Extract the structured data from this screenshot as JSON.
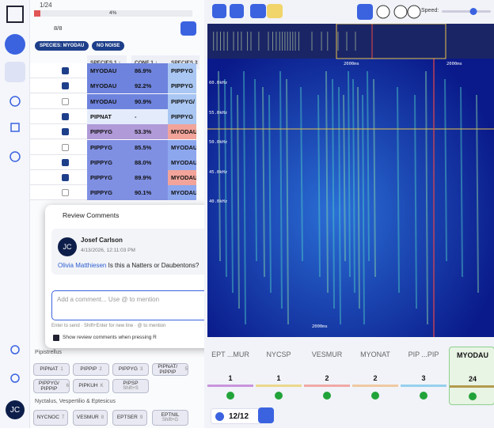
{
  "header": {
    "counter": "1/24",
    "progress": "4%",
    "filter_count": "8/8"
  },
  "filters": [
    "SPECIES: MYODAU",
    "NO NOISE"
  ],
  "table": {
    "columns": [
      "SPECIES 1 ↕",
      "CONF 1 ↕",
      "SPECIES 2"
    ],
    "rows": [
      {
        "species1": "MYODAU",
        "conf1": "86.9%",
        "species2": "PIPPYG",
        "color1": "#6e83dd",
        "color2": "#a9c7f2"
      },
      {
        "species1": "MYODAU",
        "conf1": "92.2%",
        "species2": "PIPPYG",
        "color1": "#6e83dd",
        "color2": "#a9c7f2"
      },
      {
        "species1": "MYODAU",
        "conf1": "90.9%",
        "species2": "PIPPYG/",
        "color1": "#6e83dd",
        "color2": "#a9c7f2"
      },
      {
        "species1": "PIPNAT",
        "conf1": "-",
        "species2": "PIPPYG",
        "color1": "#e4ecfb",
        "color2": "#a9c7f2"
      },
      {
        "species1": "PIPPYG",
        "conf1": "53.3%",
        "species2": "MYODAU",
        "color1": "#b09ad8",
        "color2": "#f2a49a"
      },
      {
        "species1": "PIPPYG",
        "conf1": "85.5%",
        "species2": "MYODAU",
        "color1": "#7f90e3",
        "color2": "#8da7ee"
      },
      {
        "species1": "PIPPYG",
        "conf1": "88.0%",
        "species2": "MYODAU",
        "color1": "#7f90e3",
        "color2": "#8da7ee"
      },
      {
        "species1": "PIPPYG",
        "conf1": "89.9%",
        "species2": "MYODAU",
        "color1": "#7f90e3",
        "color2": "#f2a49a"
      },
      {
        "species1": "PIPPYG",
        "conf1": "90.1%",
        "species2": "MYODAU",
        "color1": "#7f90e3",
        "color2": "#8da7ee"
      }
    ]
  },
  "comments_popup": {
    "title": "Review Comments",
    "initials": "JC",
    "author": "Josef Carlson",
    "timestamp": "4/13/2026, 12:11:03 PM",
    "mention": "Olivia Matthiesen",
    "text": "Is this a Natters or Daubentons?",
    "placeholder": "Add a comment... Use @ to mention",
    "hint": "Enter to send · Shift+Enter for new line · @ to mention",
    "checkbox": "Show review comments when pressing R"
  },
  "species_groups": [
    {
      "name": "Pipistrellus",
      "buttons": [
        {
          "label": "PIPNAT",
          "key": "1"
        },
        {
          "label": "PIPPIP",
          "key": "2"
        },
        {
          "label": "PIPPYG",
          "key": "3"
        },
        {
          "label": "PIPNAT/ PIPPIP",
          "key": "5"
        },
        {
          "label": "PIPPYG/ PIPPIP",
          "key": "6"
        },
        {
          "label": "PIPKUH",
          "key": "K"
        },
        {
          "label": "PIPSP",
          "key": "Shift+S"
        }
      ]
    },
    {
      "name": "Nyctalus, Vespertilio & Eptesicus",
      "buttons": [
        {
          "label": "NYCNOC",
          "key": "7"
        },
        {
          "label": "VESMUR",
          "key": "8"
        },
        {
          "label": "EPTSER",
          "key": "9"
        },
        {
          "label": "EPTNIL",
          "key": "Shift+G"
        }
      ]
    }
  ],
  "spectrogram": {
    "freq_labels": [
      "60.0kHz",
      "55.0kHz",
      "50.0kHz",
      "45.0kHz",
      "40.0kHz"
    ],
    "time_labels": [
      "2000ms",
      "2000ms",
      "2000ms"
    ]
  },
  "player": {
    "speed_label": "Speed:"
  },
  "summary": {
    "cards": [
      {
        "label": "EPT ...MUR",
        "count": "1",
        "color": "#c995dc"
      },
      {
        "label": "NYCSP",
        "count": "1",
        "color": "#ecd88c"
      },
      {
        "label": "VESMUR",
        "count": "2",
        "color": "#f1a8a6"
      },
      {
        "label": "MYONAT",
        "count": "2",
        "color": "#f0c9a2"
      },
      {
        "label": "PIP ...PIP",
        "count": "3",
        "color": "#96d0ef"
      },
      {
        "label": "MYODAU",
        "count": "24",
        "color": "#b39a4d"
      }
    ],
    "selected": "12/12"
  },
  "sidebar": {
    "user_initials": "JC"
  }
}
